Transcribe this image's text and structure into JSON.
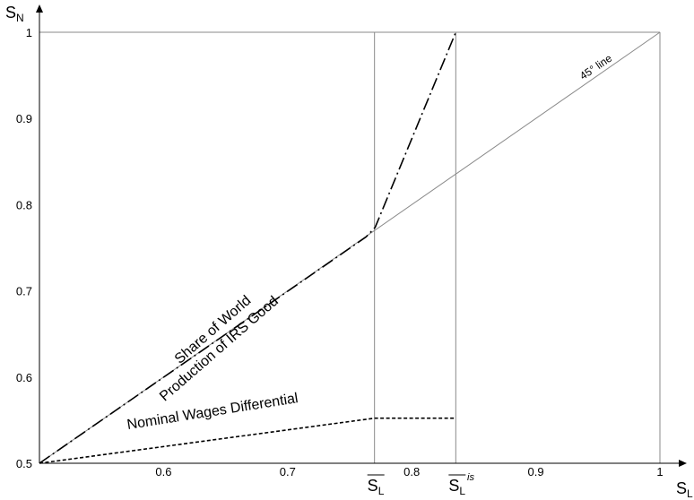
{
  "chart_data": {
    "type": "line",
    "xlabel": "S",
    "xlabel_sub": "L",
    "ylabel": "S",
    "ylabel_sub": "N",
    "xlim": [
      0.5,
      1.0
    ],
    "ylim": [
      0.5,
      1.0
    ],
    "x_ticks": [
      {
        "value": 0.6,
        "label": "0.6"
      },
      {
        "value": 0.7,
        "label": "0.7"
      },
      {
        "value": 0.8,
        "label": "0.8"
      },
      {
        "value": 0.9,
        "label": "0.9"
      },
      {
        "value": 1.0,
        "label": "1"
      }
    ],
    "y_ticks": [
      {
        "value": 0.5,
        "label": "0.5"
      },
      {
        "value": 0.6,
        "label": "0.6"
      },
      {
        "value": 0.7,
        "label": "0.7"
      },
      {
        "value": 0.8,
        "label": "0.8"
      },
      {
        "value": 0.9,
        "label": "0.9"
      },
      {
        "value": 1.0,
        "label": "1"
      }
    ],
    "reference_lines": [
      {
        "id": "line-45",
        "x": [
          0.5,
          1.0
        ],
        "y": [
          0.5,
          1.0
        ],
        "label": "45° line"
      },
      {
        "id": "y-one",
        "x": [
          0.5,
          1.0
        ],
        "y": [
          1.0,
          1.0
        ]
      }
    ],
    "vertical_markers": [
      {
        "id": "s-bar",
        "x": 0.77,
        "label_main": "S",
        "label_sub": "L",
        "label_sup": ""
      },
      {
        "id": "s-bar-is",
        "x": 0.8355,
        "label_main": "S",
        "label_sub": "L",
        "label_sup": "is"
      },
      {
        "id": "x-one",
        "x": 1.0,
        "label_main": "",
        "label_sub": "",
        "label_sup": ""
      }
    ],
    "series": [
      {
        "id": "share",
        "name": "Share of World Production of IRS Good",
        "label_lines": [
          "Share of World",
          "Production of IRS Good"
        ],
        "style": "long-dash",
        "x": [
          0.5,
          0.7632,
          0.7705,
          0.8355
        ],
        "y": [
          0.5,
          0.7626,
          0.7736,
          1.0
        ]
      },
      {
        "id": "wages",
        "name": "Nominal Wages Differential",
        "label_lines": [
          "Nominal Wages Differential"
        ],
        "style": "short-dash",
        "x": [
          0.5,
          0.77,
          0.8355
        ],
        "y": [
          0.5,
          0.5523,
          0.5523
        ]
      }
    ]
  }
}
